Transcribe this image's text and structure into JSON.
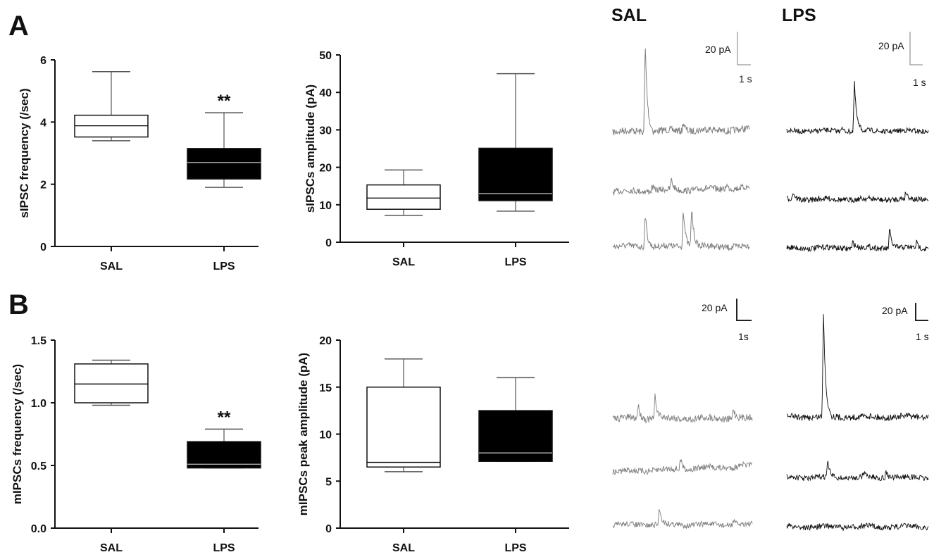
{
  "panels": {
    "a": "A",
    "b": "B"
  },
  "trace_titles": {
    "sal": "SAL",
    "lps": "LPS"
  },
  "scale_bars": {
    "a_sal": {
      "y": "20 pA",
      "x": "1 s"
    },
    "a_lps": {
      "y": "20 pA",
      "x": "1 s"
    },
    "b_sal": {
      "y": "20 pA",
      "x": "1s"
    },
    "b_lps": {
      "y": "20 pA",
      "x": "1 s"
    }
  },
  "colors": {
    "sal_box": "#ffffff",
    "lps_box": "#000000",
    "sal_trace": "#808080",
    "lps_trace": "#111111"
  },
  "chart_data": [
    {
      "id": "a1",
      "type": "box",
      "ylabel": "sIPSC frequency (/sec)",
      "ylim": [
        0,
        6
      ],
      "yticks": [
        "0",
        "2",
        "4",
        "6"
      ],
      "categories": [
        "SAL",
        "LPS"
      ],
      "boxes": [
        {
          "min": 3.4,
          "q1": 3.52,
          "median": 3.88,
          "q3": 4.22,
          "max": 5.62
        },
        {
          "min": 1.9,
          "q1": 2.17,
          "median": 2.7,
          "q3": 3.15,
          "max": 4.3
        }
      ],
      "annotation": {
        "category": "LPS",
        "text": "**"
      }
    },
    {
      "id": "a2",
      "type": "box",
      "ylabel": "sIPSCs amplitude (pA)",
      "ylim": [
        0,
        50
      ],
      "yticks": [
        "0",
        "10",
        "20",
        "30",
        "40",
        "50"
      ],
      "categories": [
        "SAL",
        "LPS"
      ],
      "boxes": [
        {
          "min": 7.2,
          "q1": 8.8,
          "median": 11.8,
          "q3": 15.3,
          "max": 19.3
        },
        {
          "min": 8.3,
          "q1": 11.1,
          "median": 13,
          "q3": 25.1,
          "max": 45
        }
      ]
    },
    {
      "id": "b1",
      "type": "box",
      "ylabel": "mIPSCs frequency (/sec)",
      "ylim": [
        0,
        1.5
      ],
      "yticks": [
        "0.0",
        "0.5",
        "1.0",
        "1.5"
      ],
      "categories": [
        "SAL",
        "LPS"
      ],
      "boxes": [
        {
          "min": 0.98,
          "q1": 1.0,
          "median": 1.15,
          "q3": 1.31,
          "max": 1.34
        },
        {
          "min": 0.48,
          "q1": 0.48,
          "median": 0.51,
          "q3": 0.69,
          "max": 0.79
        }
      ],
      "annotation": {
        "category": "LPS",
        "text": "**"
      }
    },
    {
      "id": "b2",
      "type": "box",
      "ylabel": "mIPSCs peak amplitude (pA)",
      "ylim": [
        0,
        20
      ],
      "yticks": [
        "0",
        "5",
        "10",
        "15",
        "20"
      ],
      "categories": [
        "SAL",
        "LPS"
      ],
      "boxes": [
        {
          "min": 6,
          "q1": 6.5,
          "median": 7,
          "q3": 15,
          "max": 18
        },
        {
          "min": 7.1,
          "q1": 7.1,
          "median": 8,
          "q3": 12.5,
          "max": 16
        }
      ]
    }
  ]
}
